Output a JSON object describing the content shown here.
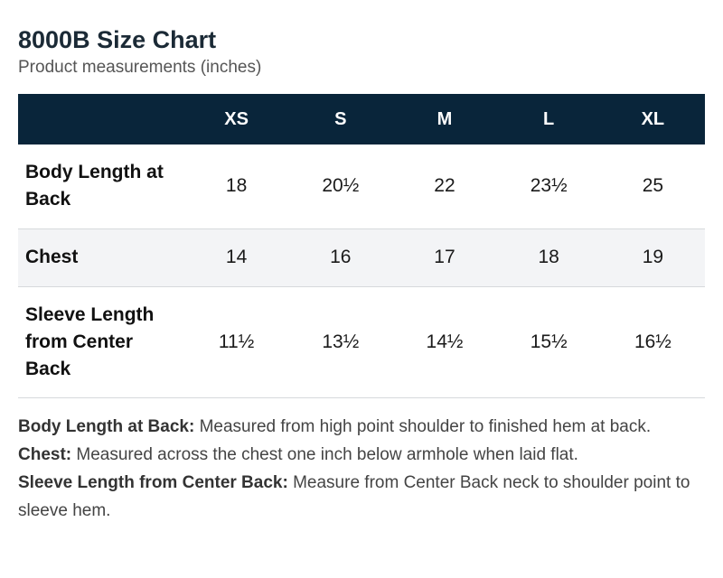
{
  "header": {
    "title": "8000B Size Chart",
    "subtitle": "Product measurements (inches)"
  },
  "table": {
    "columns": [
      "XS",
      "S",
      "M",
      "L",
      "XL"
    ],
    "rows": [
      {
        "label": "Body Length at Back",
        "values": [
          "18",
          "20½",
          "22",
          "23½",
          "25"
        ]
      },
      {
        "label": "Chest",
        "values": [
          "14",
          "16",
          "17",
          "18",
          "19"
        ]
      },
      {
        "label": "Sleeve Length from Center Back",
        "values": [
          "11½",
          "13½",
          "14½",
          "15½",
          "16½"
        ]
      }
    ]
  },
  "notes": [
    {
      "term": "Body Length at Back:",
      "text": "Measured from high point shoulder to finished hem at back."
    },
    {
      "term": "Chest:",
      "text": "Measured across the chest one inch below armhole when laid flat."
    },
    {
      "term": "Sleeve Length from Center Back:",
      "text": "Measure from Center Back neck to shoulder point to sleeve hem."
    }
  ],
  "colors": {
    "header_bg": "#09253a",
    "header_text": "#ffffff",
    "alt_row_bg": "#f3f4f6"
  }
}
